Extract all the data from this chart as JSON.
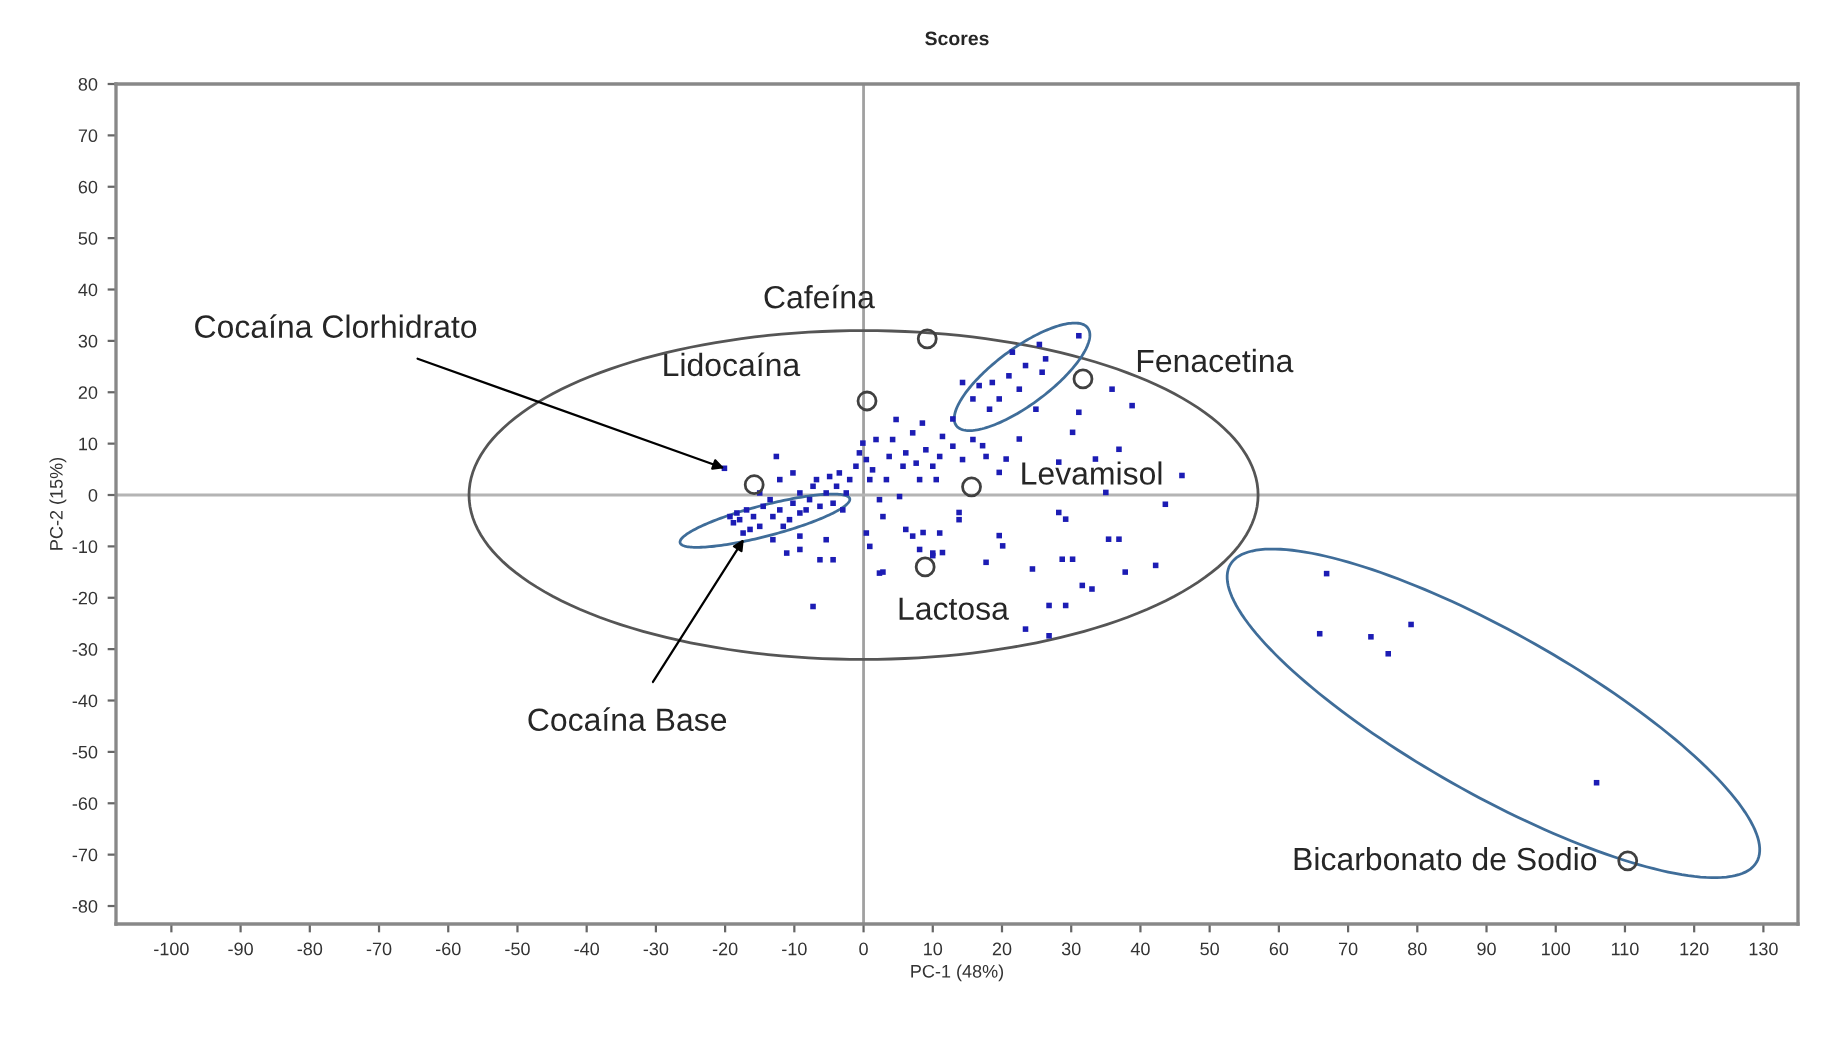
{
  "chart_data": {
    "type": "scatter",
    "title": "Scores",
    "xlabel": "PC-1 (48%)",
    "ylabel": "PC-2 (15%)",
    "xlim": [
      -108,
      135
    ],
    "ylim": [
      -83.5,
      80
    ],
    "xticks": [
      -100,
      -90,
      -80,
      -70,
      -60,
      -50,
      -40,
      -30,
      -20,
      -10,
      0,
      10,
      20,
      30,
      40,
      50,
      60,
      70,
      80,
      90,
      100,
      110,
      120,
      130
    ],
    "yticks": [
      -80,
      -70,
      -60,
      -50,
      -40,
      -30,
      -20,
      -10,
      0,
      10,
      20,
      30,
      40,
      50,
      60,
      70,
      80
    ],
    "grid": false,
    "ref_lines": [
      {
        "axis": "x",
        "value": 0,
        "color": "#a0a0a0"
      },
      {
        "axis": "y",
        "value": 0,
        "color": "#b4b4b4"
      }
    ],
    "series": [
      {
        "marker": "square",
        "color": "#1c1cb4",
        "x": [
          -20.1,
          -12.6,
          -19.3,
          -18.3,
          -17.9,
          -18.8,
          -16.9,
          -15.9,
          -15.0,
          -16.4,
          -17.4,
          -14.5,
          -13.5,
          -13.1,
          -12.1,
          -11.6,
          -10.7,
          -10.2,
          -9.2,
          -9.2,
          -8.3,
          -7.8,
          -7.3,
          -6.8,
          -6.3,
          -5.4,
          -4.9,
          -4.4,
          -3.9,
          -3.5,
          -3.0,
          -2.5,
          -2.0,
          -1.1,
          -0.6,
          -0.1,
          0.4,
          0.9,
          1.3,
          1.8,
          2.3,
          2.8,
          3.3,
          3.7,
          4.2,
          4.7,
          5.2,
          5.7,
          6.1,
          7.1,
          7.6,
          8.1,
          8.5,
          9.0,
          10.0,
          10.5,
          11.0,
          11.4,
          12.9,
          14.3,
          15.8,
          17.7,
          0.4,
          0.9,
          2.3,
          6.1,
          7.1,
          8.1,
          10.0,
          11.0,
          13.8,
          -7.3,
          -11.1,
          -9.2,
          -6.3,
          -4.4,
          -13.1,
          -9.2,
          -5.4,
          -15.0,
          -12.1,
          -10.2,
          31.1,
          25.4,
          21.5,
          23.4,
          25.8,
          21.0,
          18.6,
          16.7,
          19.6,
          22.5,
          24.9,
          15.8,
          14.3,
          12.9,
          18.2,
          26.3,
          35.9,
          38.8,
          31.1,
          30.2,
          36.9,
          46.0,
          43.6,
          33.5,
          28.2,
          22.5,
          20.6,
          17.2,
          19.6,
          35.0,
          28.2,
          29.2,
          35.4,
          36.9,
          19.6,
          20.1,
          11.4,
          10.0,
          17.7,
          24.4,
          28.7,
          30.2,
          31.6,
          33.0,
          37.8,
          42.2,
          26.8,
          29.2,
          23.4,
          26.8,
          2.8,
          13.8,
          8.6,
          66.9,
          65.9,
          73.3,
          75.8,
          79.1,
          105.9
        ],
        "values": [
          5.2,
          7.5,
          -4.2,
          -3.5,
          -4.8,
          -5.4,
          -2.9,
          -4.2,
          -6.1,
          -6.7,
          -7.4,
          -2.2,
          -0.9,
          -4.2,
          -2.9,
          -6.1,
          -4.8,
          -1.6,
          0.4,
          -3.5,
          -2.9,
          -0.9,
          1.7,
          3.0,
          -2.2,
          0.4,
          3.6,
          -1.6,
          1.7,
          4.3,
          -2.9,
          0.4,
          3.0,
          5.6,
          8.2,
          10.1,
          6.9,
          3.0,
          4.9,
          10.8,
          -0.9,
          -4.2,
          3.0,
          7.5,
          10.8,
          14.7,
          -0.3,
          5.6,
          8.2,
          12.1,
          6.2,
          3.0,
          14.0,
          8.8,
          5.6,
          3.0,
          7.5,
          11.4,
          9.5,
          6.9,
          10.8,
          7.5,
          -7.4,
          -10.0,
          -15.2,
          -6.7,
          -8.0,
          -10.6,
          -11.3,
          -7.4,
          -4.8,
          -21.7,
          -11.3,
          -10.6,
          -12.6,
          -12.6,
          -8.7,
          -8.0,
          -8.7,
          0.4,
          3.0,
          4.3,
          31.0,
          29.3,
          27.8,
          25.2,
          23.9,
          23.2,
          21.9,
          21.3,
          18.7,
          20.6,
          16.7,
          18.7,
          21.9,
          14.8,
          16.7,
          26.5,
          20.6,
          17.4,
          16.1,
          12.2,
          8.9,
          3.8,
          -1.8,
          7.0,
          6.4,
          10.9,
          7.0,
          9.6,
          4.4,
          0.5,
          -3.4,
          -4.7,
          -8.6,
          -8.6,
          -7.9,
          -9.9,
          -11.2,
          -11.8,
          -13.1,
          -14.4,
          -12.5,
          -12.5,
          -17.6,
          -18.3,
          -15.0,
          -13.7,
          -21.5,
          -21.5,
          -26.1,
          -27.4,
          -15.0,
          -3.4,
          -7.3,
          -15.3,
          -27.0,
          -27.6,
          -30.9,
          -25.2,
          -56.0
        ]
      },
      {
        "marker": "circle",
        "color": "#404040",
        "x": [
          9.2,
          0.5,
          31.7,
          15.6,
          8.9,
          110.4,
          -15.8
        ],
        "values": [
          30.4,
          18.3,
          22.6,
          1.6,
          -14.0,
          -71.2,
          2.0
        ]
      }
    ],
    "annotations": [
      {
        "text": "Cafeína",
        "x": 9.2,
        "y": 30.4
      },
      {
        "text": "Lidocaína",
        "x": 0.5,
        "y": 18.3
      },
      "Fenacetina",
      "Levamisol",
      {
        "text": "Lactosa",
        "x": 8.9,
        "y": -14.0
      },
      "Bicarbonato de Sodio",
      {
        "text": "Cocaína Clorhidrato",
        "x": -20.1,
        "y": 5.2
      },
      {
        "text": "Cocaína Base",
        "x": -17.3,
        "y": -8.6
      }
    ]
  }
}
